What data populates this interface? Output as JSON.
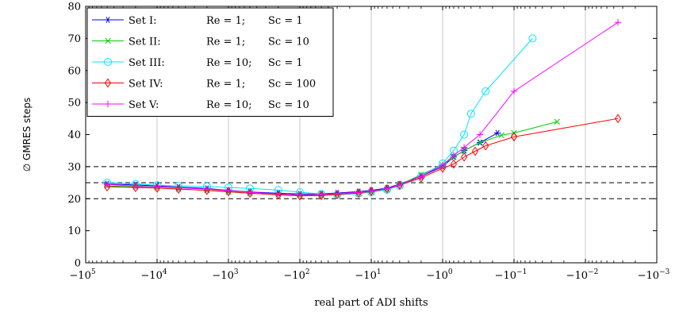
{
  "chart_data": {
    "type": "line",
    "title": "",
    "xlabel": "real part of ADI shifts",
    "ylabel": "∅ GMRES steps",
    "x_scale": "symlog-negative",
    "xlim": [
      -100000,
      -0.001
    ],
    "ylim": [
      0,
      80
    ],
    "x_ticks": [
      {
        "value": -100000,
        "base": "−10",
        "exp": "5"
      },
      {
        "value": -10000,
        "base": "−10",
        "exp": "4"
      },
      {
        "value": -1000,
        "base": "−10",
        "exp": "3"
      },
      {
        "value": -100,
        "base": "−10",
        "exp": "2"
      },
      {
        "value": -10,
        "base": "−10",
        "exp": "1"
      },
      {
        "value": -1,
        "base": "−10",
        "exp": "0"
      },
      {
        "value": -0.1,
        "base": "−10",
        "exp": "−1"
      },
      {
        "value": -0.01,
        "base": "−10",
        "exp": "−2"
      },
      {
        "value": -0.001,
        "base": "−10",
        "exp": "−3"
      }
    ],
    "y_ticks": [
      "0",
      "10",
      "20",
      "30",
      "40",
      "50",
      "60",
      "70",
      "80"
    ],
    "y_tick_values": [
      0,
      10,
      20,
      30,
      40,
      50,
      60,
      70,
      80
    ],
    "grid": "vertical-major",
    "reference_lines": [
      20,
      25,
      30
    ],
    "legend_position": "top-left",
    "series": [
      {
        "name": "Set I:",
        "re": "Re = 1;",
        "sc": "Sc = 1",
        "color": "#0000ff",
        "marker": "asterisk",
        "points": [
          [
            -50000,
            24.6
          ],
          [
            -20000,
            24.3
          ],
          [
            -10000,
            24
          ],
          [
            -5000,
            23.6
          ],
          [
            -2000,
            23.2
          ],
          [
            -1000,
            22.6
          ],
          [
            -500,
            22.1
          ],
          [
            -200,
            21.7
          ],
          [
            -100,
            21.5
          ],
          [
            -50,
            21.5
          ],
          [
            -30,
            21.8
          ],
          [
            -15,
            22.2
          ],
          [
            -10,
            22.6
          ],
          [
            -6,
            23.3
          ],
          [
            -4,
            24.6
          ],
          [
            -2,
            27
          ],
          [
            -1,
            30
          ],
          [
            -0.7,
            33
          ],
          [
            -0.5,
            35
          ],
          [
            -0.3,
            37.5
          ],
          [
            -0.17,
            40.5
          ]
        ]
      },
      {
        "name": "Set II:",
        "re": "Re = 1;",
        "sc": "Sc = 10",
        "color": "#00cc00",
        "marker": "cross",
        "points": [
          [
            -50000,
            24
          ],
          [
            -20000,
            23.7
          ],
          [
            -10000,
            23.4
          ],
          [
            -5000,
            23
          ],
          [
            -2000,
            22.6
          ],
          [
            -1000,
            22.1
          ],
          [
            -500,
            21.7
          ],
          [
            -200,
            21.3
          ],
          [
            -100,
            21.1
          ],
          [
            -50,
            21.1
          ],
          [
            -30,
            21.3
          ],
          [
            -15,
            21.8
          ],
          [
            -10,
            22.2
          ],
          [
            -6,
            23
          ],
          [
            -4,
            24.3
          ],
          [
            -2,
            27.5
          ],
          [
            -1,
            30.5
          ],
          [
            -0.7,
            33
          ],
          [
            -0.5,
            35
          ],
          [
            -0.3,
            37.5
          ],
          [
            -0.15,
            39.8
          ],
          [
            -0.1,
            40.5
          ],
          [
            -0.025,
            44
          ]
        ]
      },
      {
        "name": "Set III:",
        "re": "Re = 10;",
        "sc": "Sc = 1",
        "color": "#00e5ff",
        "marker": "circle",
        "points": [
          [
            -50000,
            25
          ],
          [
            -20000,
            24.6
          ],
          [
            -10000,
            24.2
          ],
          [
            -5000,
            24
          ],
          [
            -2000,
            23.8
          ],
          [
            -1000,
            23.5
          ],
          [
            -500,
            23.2
          ],
          [
            -200,
            22.7
          ],
          [
            -100,
            22
          ],
          [
            -50,
            21.5
          ],
          [
            -30,
            21.2
          ],
          [
            -15,
            21.6
          ],
          [
            -10,
            22
          ],
          [
            -6,
            22.8
          ],
          [
            -4,
            24
          ],
          [
            -2,
            27
          ],
          [
            -1,
            31
          ],
          [
            -0.7,
            35
          ],
          [
            -0.5,
            40
          ],
          [
            -0.4,
            46.5
          ],
          [
            -0.25,
            53.5
          ],
          [
            -0.055,
            70
          ]
        ]
      },
      {
        "name": "Set IV:",
        "re": "Re = 1;",
        "sc": "Sc = 100",
        "color": "#ff0000",
        "marker": "diamond",
        "points": [
          [
            -50000,
            23.7
          ],
          [
            -20000,
            23.5
          ],
          [
            -10000,
            23.3
          ],
          [
            -5000,
            23
          ],
          [
            -2000,
            22.6
          ],
          [
            -1000,
            22.2
          ],
          [
            -500,
            21.7
          ],
          [
            -200,
            21.2
          ],
          [
            -100,
            20.9
          ],
          [
            -50,
            21
          ],
          [
            -30,
            21.3
          ],
          [
            -15,
            21.8
          ],
          [
            -10,
            22.3
          ],
          [
            -6,
            23.1
          ],
          [
            -4,
            24.2
          ],
          [
            -2,
            26.5
          ],
          [
            -1,
            29.5
          ],
          [
            -0.7,
            30.8
          ],
          [
            -0.5,
            33
          ],
          [
            -0.35,
            34.8
          ],
          [
            -0.25,
            36.5
          ],
          [
            -0.1,
            39.3
          ],
          [
            -0.0035,
            45
          ]
        ]
      },
      {
        "name": "Set V:",
        "re": "Re = 10;",
        "sc": "Sc = 10",
        "color": "#ff00ff",
        "marker": "plus",
        "points": [
          [
            -50000,
            24.4
          ],
          [
            -20000,
            24
          ],
          [
            -10000,
            23.7
          ],
          [
            -5000,
            23.4
          ],
          [
            -2000,
            23
          ],
          [
            -1000,
            22.5
          ],
          [
            -500,
            22
          ],
          [
            -200,
            21.5
          ],
          [
            -100,
            21.2
          ],
          [
            -50,
            21.3
          ],
          [
            -30,
            21.6
          ],
          [
            -15,
            22
          ],
          [
            -10,
            22.4
          ],
          [
            -6,
            23.1
          ],
          [
            -4,
            24.2
          ],
          [
            -2,
            27
          ],
          [
            -1,
            30.5
          ],
          [
            -0.7,
            33.5
          ],
          [
            -0.5,
            36
          ],
          [
            -0.3,
            40
          ],
          [
            -0.1,
            53.5
          ],
          [
            -0.0035,
            75
          ]
        ]
      }
    ]
  }
}
